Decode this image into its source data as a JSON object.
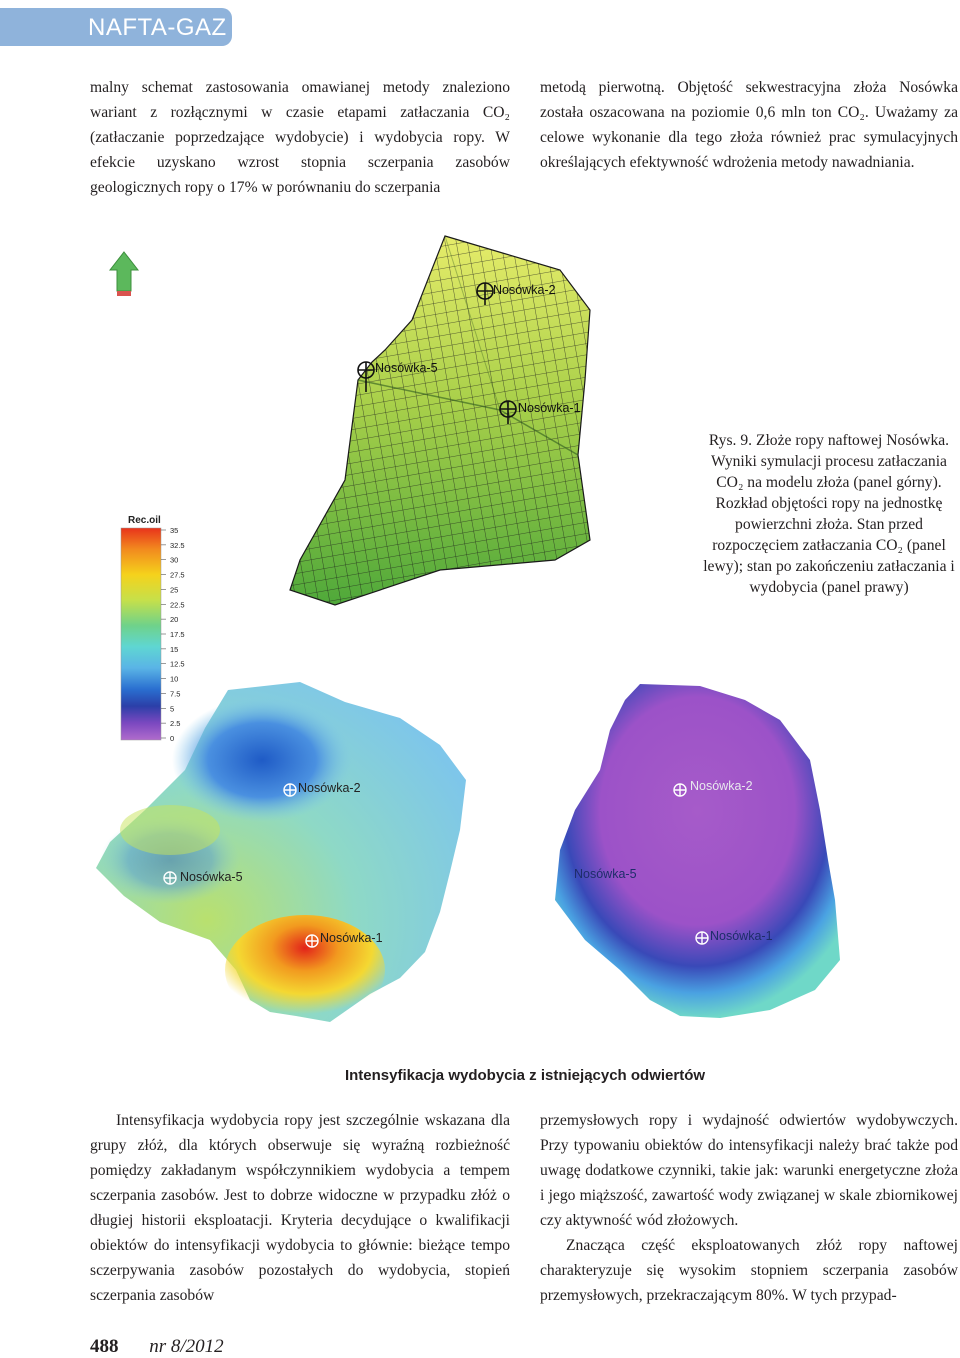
{
  "header": {
    "journal": "NAFTA-GAZ"
  },
  "text": {
    "col1": "malny schemat zastosowania omawianej metody znaleziono wariant z rozłącznymi w czasie etapami zatłaczania CO₂ (zatłaczanie poprzedzające wydobycie) i wydobycia ropy. W efekcie uzyskano wzrost stopnia sczerpania zasobów geologicznych ropy o 17% w porównaniu do sczerpania",
    "col2": "metodą pierwotną. Objętość sekwestracyjna złoża Nosówka została oszacowana na poziomie 0,6 mln ton CO₂. Uważamy za celowe wykonanie dla tego złoża również prac symulacyjnych określających efektywność wdrożenia metody nawadniania.",
    "col3": "Intensyfikacja wydobycia ropy jest szczególnie wskazana dla grupy złóż, dla których obserwuje się wyraźną rozbieżność pomiędzy zakładanym współczynnikiem wydobycia a tempem sczerpania zasobów. Jest to dobrze widoczne w przypadku złóż o długiej historii eksploatacji. Kryteria decydujące o kwalifikacji obiektów do intensyfikacji wydobycia to głównie: bieżące tempo sczerpywania zasobów pozostałych do wydobycia, stopień sczerpania zasobów",
    "col4a": "przemysłowych ropy i wydajność odwiertów wydobywczych. Przy typowaniu obiektów do intensyfikacji należy brać także pod uwagę dodatkowe czynniki, takie jak: warunki energetyczne złoża i jego miąższość, zawartość wody związanej w skale zbiornikowej czy aktywność wód złożowych.",
    "col4b": "Znacząca część eksploatowanych złóż ropy naftowej charakteryzuje się wysokim stopniem sczerpania zasobów przemysłowych, przekraczającym 80%. W tych przypad-"
  },
  "figure": {
    "caption": "Rys. 9. Złoże ropy naftowej Nosówka. Wyniki symulacji procesu zatłaczania CO₂ na modelu złoża (panel górny). Rozkład objętości ropy na jednostkę powierzchni złoża. Stan przed rozpoczęciem zatłaczania CO₂ (panel lewy); stan po zakończeniu zatłaczania i wydobycia (panel prawy)",
    "legend_title": "Rec.oil",
    "legend_values": [
      "35",
      "32.5",
      "30",
      "27.5",
      "25",
      "22.5",
      "20",
      "17.5",
      "15",
      "12.5",
      "10",
      "7.5",
      "5",
      "2.5",
      "0"
    ],
    "wells_top": [
      "Nosówka-2",
      "Nosówka-5",
      "Nosówka-1"
    ],
    "wells_left": [
      "Nosówka-2",
      "Nosówka-5",
      "Nosówka-1"
    ],
    "wells_right": [
      "Nosówka-2",
      "Nosówka-5",
      "Nosówka-1"
    ],
    "colors": {
      "arrow": "#5cb85c",
      "arrow_base": "#d9534f",
      "header_bg": "#8fb3db"
    }
  },
  "section": {
    "heading": "Intensyfikacja wydobycia z istniejących odwiertów"
  },
  "footer": {
    "page": "488",
    "issue": "nr 8/2012"
  }
}
